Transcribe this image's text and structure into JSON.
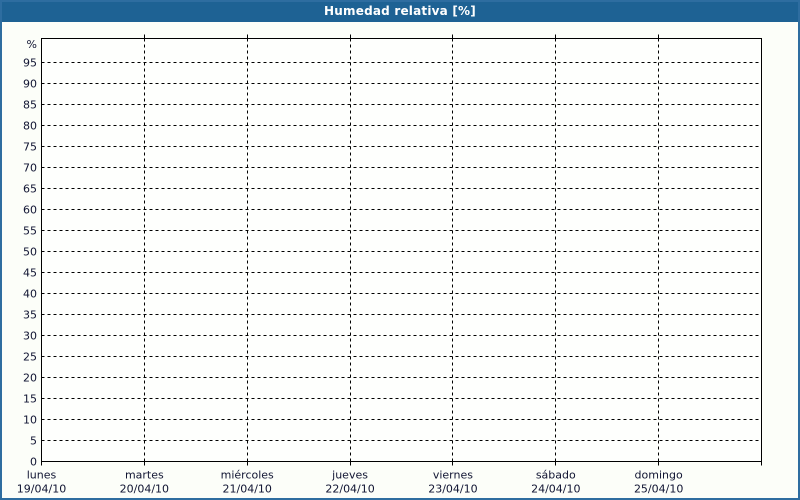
{
  "window": {
    "title": "Humedad relativa [%]"
  },
  "colors": {
    "titlebar_bg": "#1e6294",
    "window_border": "#2e6da0",
    "page_bg": "#fcfef9",
    "plot_bg": "#fefffd",
    "grid": "#000000",
    "axis": "#000000",
    "tick_label": "#101432",
    "title_text": "#ffffff"
  },
  "chart_data": {
    "type": "line",
    "title": "Humedad relativa [%]",
    "y_unit_label": "%",
    "ylim": [
      0,
      100
    ],
    "y_tick_step": 5,
    "y_ticks": [
      0,
      5,
      10,
      15,
      20,
      25,
      30,
      35,
      40,
      45,
      50,
      55,
      60,
      65,
      70,
      75,
      80,
      85,
      90,
      95
    ],
    "grid": true,
    "legend": "none",
    "x_days": [
      {
        "name": "lunes",
        "date": "19/04/10"
      },
      {
        "name": "martes",
        "date": "20/04/10"
      },
      {
        "name": "miércoles",
        "date": "21/04/10"
      },
      {
        "name": "jueves",
        "date": "22/04/10"
      },
      {
        "name": "viernes",
        "date": "23/04/10"
      },
      {
        "name": "sábado",
        "date": "24/04/10"
      },
      {
        "name": "domingo",
        "date": "25/04/10"
      }
    ],
    "series": []
  }
}
